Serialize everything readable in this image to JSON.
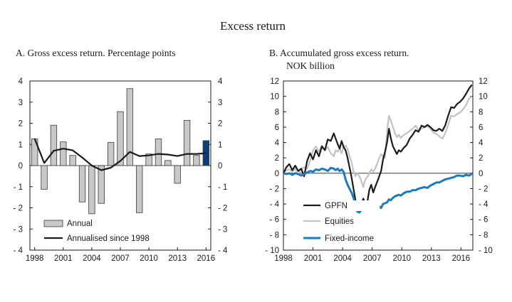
{
  "figure": {
    "title": "Excess return"
  },
  "chart_data": [
    {
      "type": "bar",
      "title": "A. Gross excess return. Percentage points",
      "ylim": [
        -4,
        4
      ],
      "yticks": [
        "4",
        "3",
        "2",
        "1",
        "0",
        "- 1",
        "- 2",
        "- 3",
        "- 4"
      ],
      "ytick_values": [
        4,
        3,
        2,
        1,
        0,
        -1,
        -2,
        -3,
        -4
      ],
      "xtick_labels": [
        "1998",
        "2001",
        "2004",
        "2007",
        "2010",
        "2013",
        "2016"
      ],
      "x": [
        1998,
        1999,
        2000,
        2001,
        2002,
        2003,
        2004,
        2005,
        2006,
        2007,
        2008,
        2009,
        2010,
        2011,
        2012,
        2013,
        2014,
        2015,
        2016
      ],
      "series": [
        {
          "name": "Annual",
          "color": "#c8c8c8",
          "highlight_last_color": "#0b3f7a",
          "values": [
            1.27,
            -1.12,
            1.91,
            1.12,
            0.48,
            -1.72,
            -2.28,
            -1.79,
            1.1,
            2.55,
            3.64,
            -2.23,
            0.55,
            1.26,
            0.24,
            -0.84,
            2.14,
            0.48,
            1.18
          ]
        },
        {
          "name": "Annualised since 1998",
          "color": "#1a1a1a",
          "values": [
            1.27,
            0.12,
            0.7,
            0.8,
            0.72,
            0.38,
            0.0,
            -0.22,
            -0.1,
            0.22,
            0.65,
            0.45,
            0.48,
            0.55,
            0.52,
            0.45,
            0.55,
            0.55,
            0.58
          ]
        }
      ],
      "legend_position": "bottom-left"
    },
    {
      "type": "line",
      "title_lines": [
        "B. Accumulated gross excess return.",
        "NOK billion"
      ],
      "ylim": [
        -10,
        12
      ],
      "yticks": [
        "12",
        "10",
        "8",
        "6",
        "4",
        "2",
        "0",
        "- 2",
        "- 4",
        "- 6",
        "- 8",
        "- 10"
      ],
      "ytick_values": [
        12,
        10,
        8,
        6,
        4,
        2,
        0,
        -2,
        -4,
        -6,
        -8,
        -10
      ],
      "xlim": [
        1998,
        2017.2
      ],
      "xtick_labels": [
        "1998",
        "2001",
        "2004",
        "2007",
        "2010",
        "2013",
        "2016"
      ],
      "xtick_values": [
        1998,
        2001,
        2004,
        2007,
        2010,
        2013,
        2016
      ],
      "series": [
        {
          "name": "GPFN",
          "color": "#1a1a1a",
          "points": [
            [
              1998.0,
              0.0
            ],
            [
              1998.3,
              0.8
            ],
            [
              1998.6,
              1.2
            ],
            [
              1998.9,
              0.4
            ],
            [
              1999.2,
              1.0
            ],
            [
              1999.5,
              0.3
            ],
            [
              1999.8,
              0.6
            ],
            [
              2000.1,
              -0.4
            ],
            [
              2000.4,
              1.6
            ],
            [
              2000.7,
              2.6
            ],
            [
              2001.0,
              1.8
            ],
            [
              2001.3,
              3.0
            ],
            [
              2001.6,
              2.2
            ],
            [
              2001.9,
              3.5
            ],
            [
              2002.2,
              3.0
            ],
            [
              2002.5,
              4.4
            ],
            [
              2002.8,
              4.2
            ],
            [
              2003.1,
              5.2
            ],
            [
              2003.3,
              4.5
            ],
            [
              2003.5,
              3.8
            ],
            [
              2003.7,
              3.2
            ],
            [
              2003.9,
              4.2
            ],
            [
              2004.1,
              3.4
            ],
            [
              2004.3,
              3.0
            ],
            [
              2004.5,
              2.0
            ],
            [
              2004.7,
              0.8
            ],
            [
              2004.9,
              -0.5
            ],
            [
              2005.1,
              -2.0
            ],
            [
              2005.3,
              -3.5
            ],
            [
              2005.5,
              -4.5
            ],
            [
              2005.7,
              -3.8
            ],
            [
              2005.9,
              -4.2
            ],
            [
              2006.1,
              -3.3
            ],
            [
              2006.3,
              -4.0
            ],
            [
              2006.5,
              -3.8
            ],
            [
              2006.7,
              -2.2
            ],
            [
              2006.9,
              -1.5
            ],
            [
              2007.1,
              -2.5
            ],
            [
              2007.3,
              -1.8
            ],
            [
              2007.6,
              -0.8
            ],
            [
              2007.9,
              0.3
            ],
            [
              2008.1,
              1.8
            ],
            [
              2008.3,
              2.8
            ],
            [
              2008.5,
              4.0
            ],
            [
              2008.7,
              5.8
            ],
            [
              2008.9,
              4.5
            ],
            [
              2009.1,
              3.5
            ],
            [
              2009.3,
              3.0
            ],
            [
              2009.5,
              2.5
            ],
            [
              2009.7,
              3.0
            ],
            [
              2009.9,
              2.8
            ],
            [
              2010.2,
              3.3
            ],
            [
              2010.5,
              3.7
            ],
            [
              2010.8,
              4.5
            ],
            [
              2011.1,
              5.0
            ],
            [
              2011.4,
              5.6
            ],
            [
              2011.7,
              5.4
            ],
            [
              2012.0,
              6.2
            ],
            [
              2012.3,
              6.0
            ],
            [
              2012.6,
              6.3
            ],
            [
              2012.9,
              6.0
            ],
            [
              2013.2,
              5.6
            ],
            [
              2013.5,
              5.5
            ],
            [
              2013.8,
              5.8
            ],
            [
              2014.1,
              5.5
            ],
            [
              2014.4,
              6.2
            ],
            [
              2014.7,
              7.5
            ],
            [
              2015.0,
              8.6
            ],
            [
              2015.3,
              8.5
            ],
            [
              2015.6,
              9.0
            ],
            [
              2015.9,
              9.3
            ],
            [
              2016.2,
              9.7
            ],
            [
              2016.5,
              10.3
            ],
            [
              2016.8,
              11.0
            ],
            [
              2017.1,
              11.5
            ]
          ]
        },
        {
          "name": "Equities",
          "color": "#c2c2c2",
          "points": [
            [
              1998.0,
              0.0
            ],
            [
              1998.3,
              0.4
            ],
            [
              1998.6,
              0.5
            ],
            [
              1998.9,
              0.2
            ],
            [
              1999.2,
              0.6
            ],
            [
              1999.5,
              -0.2
            ],
            [
              1999.8,
              0.5
            ],
            [
              2000.1,
              0.8
            ],
            [
              2000.4,
              0.6
            ],
            [
              2000.7,
              1.6
            ],
            [
              2001.0,
              3.0
            ],
            [
              2001.3,
              3.5
            ],
            [
              2001.6,
              2.8
            ],
            [
              2001.9,
              3.6
            ],
            [
              2002.2,
              3.0
            ],
            [
              2002.5,
              3.4
            ],
            [
              2002.8,
              2.6
            ],
            [
              2003.1,
              2.2
            ],
            [
              2003.3,
              3.0
            ],
            [
              2003.5,
              2.8
            ],
            [
              2003.7,
              3.2
            ],
            [
              2003.9,
              2.6
            ],
            [
              2004.1,
              3.4
            ],
            [
              2004.3,
              3.6
            ],
            [
              2004.5,
              3.2
            ],
            [
              2004.7,
              2.2
            ],
            [
              2004.9,
              1.5
            ],
            [
              2005.1,
              0.2
            ],
            [
              2005.3,
              -0.4
            ],
            [
              2005.5,
              0.0
            ],
            [
              2005.7,
              -0.4
            ],
            [
              2005.9,
              -1.0
            ],
            [
              2006.1,
              -1.8
            ],
            [
              2006.3,
              -0.8
            ],
            [
              2006.5,
              -0.5
            ],
            [
              2006.7,
              0.0
            ],
            [
              2006.9,
              0.5
            ],
            [
              2007.1,
              0.2
            ],
            [
              2007.3,
              0.6
            ],
            [
              2007.6,
              1.6
            ],
            [
              2007.9,
              2.5
            ],
            [
              2008.1,
              2.2
            ],
            [
              2008.3,
              2.0
            ],
            [
              2008.5,
              5.5
            ],
            [
              2008.7,
              7.5
            ],
            [
              2008.9,
              6.8
            ],
            [
              2009.1,
              6.0
            ],
            [
              2009.3,
              5.2
            ],
            [
              2009.5,
              4.7
            ],
            [
              2009.7,
              5.0
            ],
            [
              2009.9,
              4.6
            ],
            [
              2010.2,
              5.0
            ],
            [
              2010.5,
              5.2
            ],
            [
              2010.8,
              5.5
            ],
            [
              2011.1,
              5.8
            ],
            [
              2011.4,
              6.2
            ],
            [
              2011.7,
              5.6
            ],
            [
              2012.0,
              5.8
            ],
            [
              2012.3,
              6.0
            ],
            [
              2012.6,
              6.1
            ],
            [
              2012.9,
              5.8
            ],
            [
              2013.2,
              5.3
            ],
            [
              2013.5,
              5.1
            ],
            [
              2013.8,
              4.8
            ],
            [
              2014.1,
              4.5
            ],
            [
              2014.4,
              5.2
            ],
            [
              2014.7,
              6.3
            ],
            [
              2015.0,
              7.5
            ],
            [
              2015.3,
              7.4
            ],
            [
              2015.6,
              7.7
            ],
            [
              2015.9,
              7.9
            ],
            [
              2016.2,
              8.3
            ],
            [
              2016.5,
              8.8
            ],
            [
              2016.8,
              9.7
            ],
            [
              2017.1,
              10.0
            ]
          ]
        },
        {
          "name": "Fixed-income",
          "color": "#1a7cc0",
          "points": [
            [
              1998.0,
              0.0
            ],
            [
              1998.3,
              -0.1
            ],
            [
              1998.6,
              0.0
            ],
            [
              1998.9,
              -0.2
            ],
            [
              1999.2,
              0.0
            ],
            [
              1999.5,
              -0.1
            ],
            [
              1999.8,
              -0.3
            ],
            [
              2000.1,
              -0.1
            ],
            [
              2000.4,
              0.1
            ],
            [
              2000.7,
              0.3
            ],
            [
              2001.0,
              0.2
            ],
            [
              2001.3,
              0.5
            ],
            [
              2001.6,
              0.4
            ],
            [
              2001.9,
              0.6
            ],
            [
              2002.2,
              0.5
            ],
            [
              2002.5,
              0.3
            ],
            [
              2002.8,
              0.7
            ],
            [
              2003.1,
              0.6
            ],
            [
              2003.3,
              0.4
            ],
            [
              2003.5,
              0.6
            ],
            [
              2003.7,
              0.3
            ],
            [
              2003.9,
              0.5
            ],
            [
              2004.1,
              0.2
            ],
            [
              2004.3,
              -0.8
            ],
            [
              2004.5,
              -1.5
            ],
            [
              2004.7,
              -2.0
            ],
            [
              2004.9,
              -2.5
            ],
            [
              2005.1,
              -3.2
            ],
            [
              2005.3,
              -4.0
            ],
            [
              2005.5,
              -5.0
            ],
            [
              2005.7,
              -5.1
            ],
            [
              2005.9,
              -4.8
            ],
            [
              2006.1,
              -4.5
            ],
            [
              2006.3,
              -4.6
            ],
            [
              2006.5,
              -4.4
            ],
            [
              2006.7,
              -4.0
            ],
            [
              2006.9,
              -4.2
            ],
            [
              2007.1,
              -4.3
            ],
            [
              2007.3,
              -4.1
            ],
            [
              2007.6,
              -4.3
            ],
            [
              2007.9,
              -4.5
            ],
            [
              2008.1,
              -4.0
            ],
            [
              2008.3,
              -3.9
            ],
            [
              2008.5,
              -3.8
            ],
            [
              2008.7,
              -3.4
            ],
            [
              2008.9,
              -3.5
            ],
            [
              2009.1,
              -3.2
            ],
            [
              2009.3,
              -3.0
            ],
            [
              2009.5,
              -2.9
            ],
            [
              2009.7,
              -2.8
            ],
            [
              2009.9,
              -2.9
            ],
            [
              2010.2,
              -2.6
            ],
            [
              2010.5,
              -2.4
            ],
            [
              2010.8,
              -2.4
            ],
            [
              2011.1,
              -2.2
            ],
            [
              2011.4,
              -2.2
            ],
            [
              2011.7,
              -2.0
            ],
            [
              2012.0,
              -1.9
            ],
            [
              2012.3,
              -1.8
            ],
            [
              2012.6,
              -1.9
            ],
            [
              2012.9,
              -1.6
            ],
            [
              2013.2,
              -1.4
            ],
            [
              2013.5,
              -1.2
            ],
            [
              2013.8,
              -1.2
            ],
            [
              2014.1,
              -1.0
            ],
            [
              2014.4,
              -0.8
            ],
            [
              2014.7,
              -0.7
            ],
            [
              2015.0,
              -0.6
            ],
            [
              2015.3,
              -0.5
            ],
            [
              2015.6,
              -0.3
            ],
            [
              2015.9,
              -0.3
            ],
            [
              2016.2,
              -0.4
            ],
            [
              2016.5,
              -0.2
            ],
            [
              2016.8,
              -0.3
            ],
            [
              2017.1,
              -0.1
            ]
          ]
        }
      ],
      "legend_position": "bottom-center"
    }
  ]
}
